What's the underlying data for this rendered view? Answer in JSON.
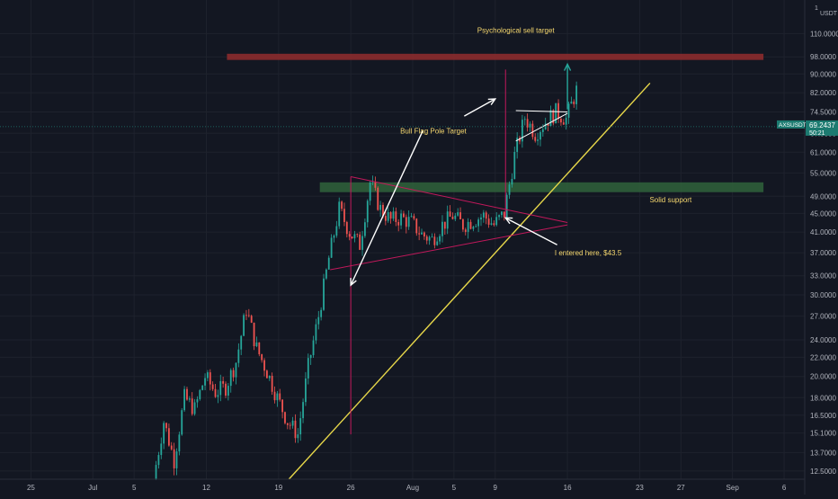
{
  "chart_data": {
    "type": "candlestick",
    "symbol": "AXSUSDT",
    "quote_currency": "USDT",
    "price_scale": "log",
    "last_price": "69.2437",
    "countdown": "50:21",
    "y_axis": {
      "ylim": [
        12.0,
        130.0
      ],
      "ticks": [
        "12.5000",
        "13.7000",
        "15.1000",
        "16.5000",
        "18.0000",
        "20.0000",
        "22.0000",
        "24.0000",
        "27.0000",
        "30.0000",
        "33.0000",
        "37.0000",
        "41.0000",
        "45.0000",
        "49.0000",
        "55.0000",
        "61.0000",
        "67.0000",
        "74.5000",
        "82.0000",
        "90.0000",
        "98.0000",
        "110.0000"
      ]
    },
    "x_axis": {
      "xlim": [
        "2021-06-22",
        "2021-09-08"
      ],
      "ticks": [
        {
          "date": "2021-06-25",
          "label": "25"
        },
        {
          "date": "2021-07-01",
          "label": "Jul"
        },
        {
          "date": "2021-07-05",
          "label": "5"
        },
        {
          "date": "2021-07-12",
          "label": "12"
        },
        {
          "date": "2021-07-19",
          "label": "19"
        },
        {
          "date": "2021-07-26",
          "label": "26"
        },
        {
          "date": "2021-08-01",
          "label": "Aug"
        },
        {
          "date": "2021-08-05",
          "label": "5"
        },
        {
          "date": "2021-08-09",
          "label": "9"
        },
        {
          "date": "2021-08-16",
          "label": "16"
        },
        {
          "date": "2021-08-23",
          "label": "23"
        },
        {
          "date": "2021-08-27",
          "label": "27"
        },
        {
          "date": "2021-09-01",
          "label": "Sep"
        },
        {
          "date": "2021-09-06",
          "label": "6"
        }
      ]
    },
    "price_path": [
      [
        "2021-07-07",
        12.0
      ],
      [
        "2021-07-08",
        16.0
      ],
      [
        "2021-07-09",
        13.2
      ],
      [
        "2021-07-10",
        18.0
      ],
      [
        "2021-07-11",
        17.0
      ],
      [
        "2021-07-12",
        20.0
      ],
      [
        "2021-07-13",
        18.5
      ],
      [
        "2021-07-14",
        19.0
      ],
      [
        "2021-07-15",
        21.5
      ],
      [
        "2021-07-16",
        28.0
      ],
      [
        "2021-07-17",
        23.0
      ],
      [
        "2021-07-18",
        20.5
      ],
      [
        "2021-07-19",
        18.0
      ],
      [
        "2021-07-20",
        16.0
      ],
      [
        "2021-07-21",
        15.0
      ],
      [
        "2021-07-22",
        21.0
      ],
      [
        "2021-07-23",
        27.0
      ],
      [
        "2021-07-24",
        36.0
      ],
      [
        "2021-07-25",
        46.0
      ],
      [
        "2021-07-26",
        41.0
      ],
      [
        "2021-07-27",
        38.5
      ],
      [
        "2021-07-28",
        52.5
      ],
      [
        "2021-07-29",
        46.0
      ],
      [
        "2021-07-30",
        43.5
      ],
      [
        "2021-07-31",
        44.0
      ],
      [
        "2021-08-01",
        43.0
      ],
      [
        "2021-08-02",
        40.5
      ],
      [
        "2021-08-03",
        39.5
      ],
      [
        "2021-08-04",
        42.5
      ],
      [
        "2021-08-05",
        44.5
      ],
      [
        "2021-08-06",
        42.5
      ],
      [
        "2021-08-07",
        43.5
      ],
      [
        "2021-08-08",
        44.5
      ],
      [
        "2021-08-09",
        42.5
      ],
      [
        "2021-08-10",
        45.0
      ],
      [
        "2021-08-11",
        60.0
      ],
      [
        "2021-08-12",
        72.5
      ],
      [
        "2021-08-13",
        67.0
      ],
      [
        "2021-08-14",
        71.0
      ],
      [
        "2021-08-15",
        74.5
      ],
      [
        "2021-08-16",
        72.0
      ],
      [
        "2021-08-17",
        83.0
      ]
    ],
    "zones": [
      {
        "name": "Psychological sell target",
        "color": "#8c2b2e",
        "y": [
          96.5,
          99.5
        ],
        "x": [
          "2021-07-14",
          "2021-09-04"
        ]
      },
      {
        "name": "Solid support",
        "color": "#2f5e3a",
        "y": [
          50.0,
          52.5
        ],
        "x": [
          "2021-07-23",
          "2021-09-04"
        ]
      }
    ],
    "trendlines": [
      {
        "name": "ascending-support",
        "color": "#e8d84a",
        "from": [
          "2021-07-20",
          12.0
        ],
        "to": [
          "2021-08-24",
          86.0
        ]
      },
      {
        "name": "pennant-upper",
        "color": "#c2185b",
        "from": [
          "2021-07-26",
          54.0
        ],
        "to": [
          "2021-08-16",
          43.0
        ]
      },
      {
        "name": "pennant-lower",
        "color": "#c2185b",
        "from": [
          "2021-07-24",
          34.0
        ],
        "to": [
          "2021-08-16",
          42.5
        ]
      },
      {
        "name": "flag-pole-1",
        "color": "#c2185b",
        "from": [
          "2021-07-26",
          54.0
        ],
        "to": [
          "2021-07-26",
          15.0
        ]
      },
      {
        "name": "flag-pole-2",
        "color": "#c2185b",
        "from": [
          "2021-08-10",
          92.0
        ],
        "to": [
          "2021-08-10",
          44.0
        ]
      },
      {
        "name": "flag-top",
        "color": "#ffffff",
        "from": [
          "2021-08-11",
          75.0
        ],
        "to": [
          "2021-08-16",
          74.5
        ]
      },
      {
        "name": "flag-bottom",
        "color": "#ffffff",
        "from": [
          "2021-08-11",
          64.5
        ],
        "to": [
          "2021-08-16",
          74.0
        ]
      }
    ],
    "arrows": [
      {
        "name": "bull-flag-arrow-down",
        "color": "#ffffff",
        "from": [
          "2021-08-02",
          68.0
        ],
        "to": [
          "2021-07-26",
          31.5
        ]
      },
      {
        "name": "bull-flag-arrow-up",
        "color": "#ffffff",
        "from": [
          "2021-08-06",
          73.0
        ],
        "to": [
          "2021-08-09",
          79.5
        ]
      },
      {
        "name": "entry-arrow",
        "color": "#ffffff",
        "from": [
          "2021-08-15",
          38.5
        ],
        "to": [
          "2021-08-10",
          44.0
        ]
      },
      {
        "name": "projection-arrow",
        "color": "#26a69a",
        "from": [
          "2021-08-16",
          75.5
        ],
        "to": [
          "2021-08-16",
          94.5
        ]
      }
    ],
    "annotations": [
      {
        "name": "sell-target-note",
        "text": "Psychological sell target",
        "at": [
          "2021-08-11",
          110.5
        ]
      },
      {
        "name": "bull-flag-note",
        "text": "Bull Flag Pole Target",
        "at": [
          "2021-08-03",
          67.0
        ]
      },
      {
        "name": "support-note",
        "text": "Solid support",
        "at": [
          "2021-08-26",
          47.5
        ]
      },
      {
        "name": "entry-note",
        "text": "I entered here, $43.5",
        "at": [
          "2021-08-18",
          36.5
        ]
      }
    ],
    "colors": {
      "background": "#131722",
      "grid": "#1e222d",
      "up": "#26a69a",
      "down": "#ef5350",
      "text": "#b2b5be",
      "annotation": "#f5d76e",
      "price_tag": "#1c7a70"
    }
  }
}
